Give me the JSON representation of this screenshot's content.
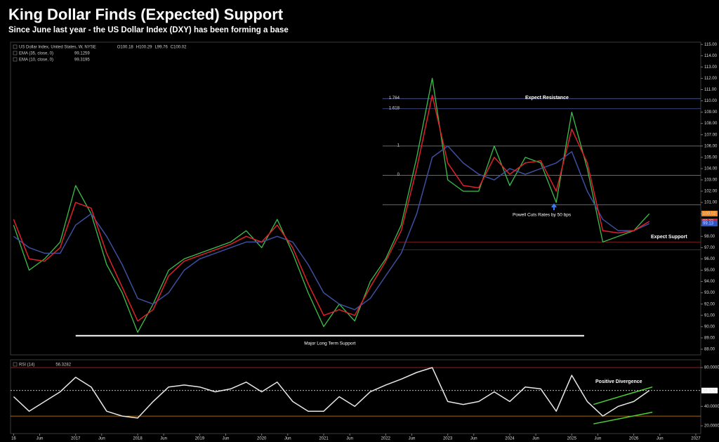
{
  "chart_data": [
    {
      "type": "line",
      "title": "King Dollar Finds (Expected) Support",
      "subtitle": "Since June last year - the US Dollar Index (DXY) has been forming a base",
      "xlim": [
        2015.95,
        2027.08
      ],
      "ylim": [
        87.5,
        115.2
      ],
      "yticks": [
        {
          "value": 88,
          "label": "88.00"
        },
        {
          "value": 89,
          "label": "89.00"
        },
        {
          "value": 90,
          "label": "90.00"
        },
        {
          "value": 91,
          "label": "91.00"
        },
        {
          "value": 92,
          "label": "92.00"
        },
        {
          "value": 93,
          "label": "93.00"
        },
        {
          "value": 94,
          "label": "94.00"
        },
        {
          "value": 95,
          "label": "95.00"
        },
        {
          "value": 96,
          "label": "96.00"
        },
        {
          "value": 97,
          "label": "97.00"
        },
        {
          "value": 98,
          "label": "98.00"
        },
        {
          "value": 99,
          "label": "99.00"
        },
        {
          "value": 100,
          "label": "100.00"
        },
        {
          "value": 101,
          "label": "101.00"
        },
        {
          "value": 102,
          "label": "102.00"
        },
        {
          "value": 103,
          "label": "103.00"
        },
        {
          "value": 104,
          "label": "104.00"
        },
        {
          "value": 105,
          "label": "105.00"
        },
        {
          "value": 106,
          "label": "106.00"
        },
        {
          "value": 107,
          "label": "107.00"
        },
        {
          "value": 108,
          "label": "108.00"
        },
        {
          "value": 109,
          "label": "109.00"
        },
        {
          "value": 110,
          "label": "110.00"
        },
        {
          "value": 111,
          "label": "111.00"
        },
        {
          "value": 112,
          "label": "112.00"
        },
        {
          "value": 113,
          "label": "113.00"
        },
        {
          "value": 114,
          "label": "114.00"
        },
        {
          "value": 115,
          "label": "115.00"
        }
      ],
      "grid": false,
      "x": [
        2016,
        2016.25,
        2016.5,
        2016.75,
        2017,
        2017.25,
        2017.5,
        2017.75,
        2018,
        2018.25,
        2018.5,
        2018.75,
        2019,
        2019.25,
        2019.5,
        2019.75,
        2020,
        2020.25,
        2020.5,
        2020.75,
        2021,
        2021.25,
        2021.5,
        2021.75,
        2022,
        2022.25,
        2022.5,
        2022.75,
        2023,
        2023.25,
        2023.5,
        2023.75,
        2024,
        2024.25,
        2024.5,
        2024.75,
        2025,
        2025.25,
        2025.5,
        2025.75,
        2026,
        2026.25
      ],
      "series": [
        {
          "name": "US Dollar Index, United States, W, NYSE",
          "color": "#3cbf4a",
          "ohlc": [
            100.18,
            100.29,
            99.76,
            100.02
          ],
          "ohlc_labels": [
            "O100.18",
            "H100.29",
            "L99.76",
            "C100.02"
          ],
          "values": [
            99,
            95,
            96,
            97.5,
            102.5,
            100,
            95.5,
            93,
            89.5,
            92,
            95,
            96,
            96.5,
            97,
            97.5,
            98.5,
            97,
            99.5,
            96.5,
            93,
            90,
            92,
            90.5,
            94,
            96,
            99,
            105,
            112,
            103,
            102,
            102,
            106,
            102.5,
            105,
            104.5,
            101,
            109,
            104,
            97.5,
            98,
            98.5,
            100
          ]
        },
        {
          "name": "EMA (35, close, 0)",
          "color": "#3d4f9f",
          "legend_value": 99.1259,
          "values": [
            98,
            97,
            96.5,
            96.5,
            99,
            100,
            98,
            95.5,
            92.5,
            92,
            93,
            95,
            96,
            96.5,
            97,
            97.5,
            97.5,
            98,
            97.5,
            95.5,
            93,
            92,
            91.5,
            92.5,
            94.5,
            96.5,
            100,
            105,
            106,
            104.5,
            103.5,
            103,
            104,
            103.5,
            104,
            104.5,
            105.5,
            102,
            99.5,
            98.5,
            98.5,
            99.13
          ]
        },
        {
          "name": "EMA (10, close, 0)",
          "color": "#e0202a",
          "legend_value": 99.3195,
          "values": [
            99.5,
            96,
            95.8,
            97,
            101,
            100.5,
            96.5,
            93.5,
            90.5,
            91.5,
            94.5,
            95.8,
            96.3,
            96.8,
            97.3,
            98,
            97.5,
            99,
            97,
            93.8,
            91,
            91.5,
            91,
            93.5,
            95.8,
            98.5,
            104,
            110.5,
            104.5,
            102.5,
            102.3,
            105,
            103.5,
            104.5,
            104.7,
            102,
            107.5,
            104.5,
            98.5,
            98.3,
            98.5,
            99.32
          ]
        }
      ],
      "levels": [
        {
          "name": "1.764",
          "value": 110.2,
          "x0": 2021.95,
          "color": "#4a5a9a"
        },
        {
          "name": "1.618",
          "value": 109.3,
          "x0": 2021.95,
          "color": "#4a5a9a"
        },
        {
          "name": "1",
          "value": 106,
          "x0": 2021.95,
          "color": "#777777"
        },
        {
          "name": "0",
          "value": 103.4,
          "x0": 2021.95,
          "color": "#777777"
        },
        {
          "value": 100.8,
          "x0": 2021.95,
          "color": "#777777"
        },
        {
          "value": 97.5,
          "x0": 2022.2,
          "color": "#8a2020"
        },
        {
          "value": 96.8,
          "x0": 2022.2,
          "color": "#8a2020"
        },
        {
          "name": "Major Long Term Support",
          "value": 89.2,
          "x0": 2017.0,
          "x1": 2025.2,
          "color": "#ffffff"
        }
      ],
      "price_tags": [
        {
          "value": 100.02,
          "color": "#f08a24"
        },
        {
          "value": 99.32,
          "color": "#e0202a"
        },
        {
          "value": 99.13,
          "color": "#2f55c4"
        }
      ],
      "annotations": [
        "Expect Resistance",
        "Powell Cuts Rates by 50 bps",
        "Expect Support"
      ]
    },
    {
      "type": "line",
      "xlim": [
        2015.95,
        2027.08
      ],
      "ylim": [
        12,
        88
      ],
      "yticks": [
        {
          "value": 20,
          "label": "20.0000"
        },
        {
          "value": 40,
          "label": "40.0000"
        },
        {
          "value": 80,
          "label": "80.0000"
        }
      ],
      "xticks": [
        {
          "value": 2016,
          "label": "16"
        },
        {
          "value": 2016.42,
          "label": "Jun"
        },
        2017,
        {
          "value": 2017.42,
          "label": "Jun"
        },
        2018,
        {
          "value": 2018.42,
          "label": "Jun"
        },
        2019,
        {
          "value": 2019.42,
          "label": "Jun"
        },
        2020,
        {
          "value": 2020.42,
          "label": "Jun"
        },
        2021,
        {
          "value": 2021.42,
          "label": "Jun"
        },
        2022,
        {
          "value": 2022.42,
          "label": "Jun"
        },
        2023,
        {
          "value": 2023.42,
          "label": "Jun"
        },
        2024,
        {
          "value": 2024.42,
          "label": "Jun"
        },
        2025,
        {
          "value": 2025.42,
          "label": "Jun"
        },
        2026,
        {
          "value": 2026.42,
          "label": "Jun"
        },
        2027
      ],
      "grid": false,
      "x": [
        2016,
        2016.25,
        2016.5,
        2016.75,
        2017,
        2017.25,
        2017.5,
        2017.75,
        2018,
        2018.25,
        2018.5,
        2018.75,
        2019,
        2019.25,
        2019.5,
        2019.75,
        2020,
        2020.25,
        2020.5,
        2020.75,
        2021,
        2021.25,
        2021.5,
        2021.75,
        2022,
        2022.25,
        2022.5,
        2022.75,
        2023,
        2023.25,
        2023.5,
        2023.75,
        2024,
        2024.25,
        2024.5,
        2024.75,
        2025,
        2025.25,
        2025.5,
        2025.75,
        2026,
        2026.25
      ],
      "series": [
        {
          "name": "RSI (14)",
          "color": "#e8e8e8",
          "legend_value": 56.3282,
          "values": [
            50,
            35,
            45,
            55,
            70,
            60,
            35,
            30,
            28,
            45,
            60,
            62,
            60,
            55,
            58,
            65,
            55,
            65,
            45,
            35,
            35,
            50,
            40,
            55,
            62,
            68,
            75,
            80,
            45,
            42,
            45,
            55,
            45,
            60,
            58,
            35,
            72,
            45,
            30,
            40,
            45,
            56.33
          ]
        }
      ],
      "levels": [
        {
          "value": 80,
          "color": "#b02020"
        },
        {
          "value": 30,
          "color": "#d68a1a"
        }
      ],
      "price_tags": [
        {
          "value": 56.3282,
          "color": "#ffffff"
        }
      ],
      "trendlines": [
        {
          "x": [
            2025.35,
            2026.3
          ],
          "y": [
            42,
            60
          ],
          "color": "#4cd137"
        },
        {
          "x": [
            2025.35,
            2026.3
          ],
          "y": [
            22,
            34
          ],
          "color": "#4cd137"
        }
      ],
      "annotations": [
        "Positive Divergence"
      ]
    }
  ]
}
